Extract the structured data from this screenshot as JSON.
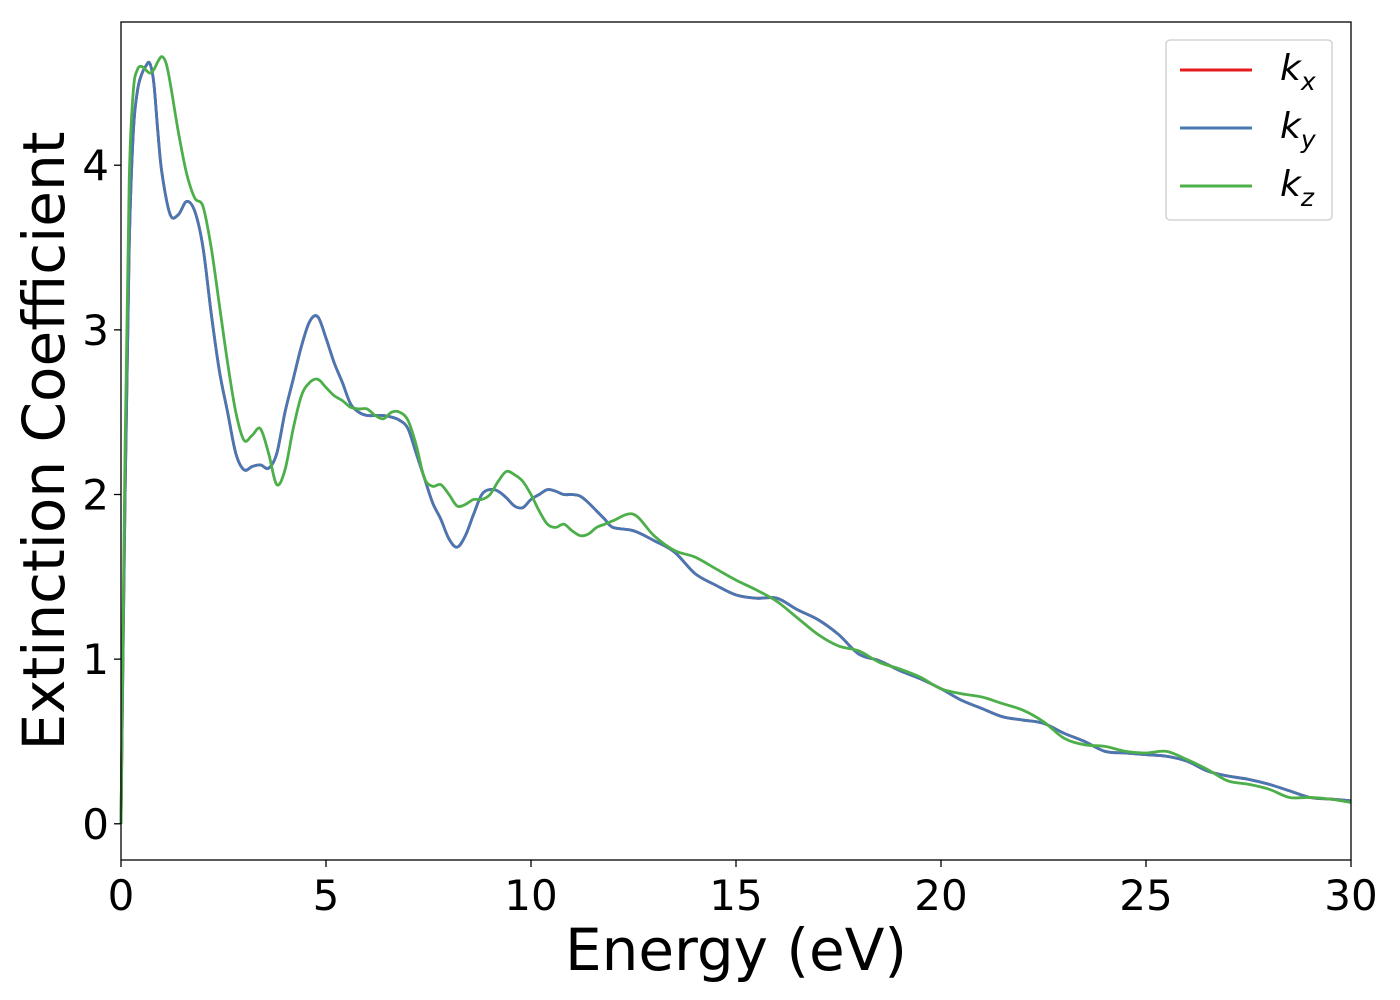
{
  "chart_data": {
    "type": "line",
    "title": "",
    "xlabel": "Energy (eV)",
    "ylabel": "Extinction Coefficient",
    "xlim": [
      0,
      30
    ],
    "ylim": [
      -0.22,
      4.87
    ],
    "xticks": [
      0,
      5,
      10,
      15,
      20,
      25,
      30
    ],
    "xtick_labels": [
      "0",
      "5",
      "10",
      "15",
      "20",
      "25",
      "30"
    ],
    "yticks": [
      0,
      1,
      2,
      3,
      4
    ],
    "ytick_labels": [
      "0",
      "1",
      "2",
      "3",
      "4"
    ],
    "grid": false,
    "legend_position": "top-right",
    "series": [
      {
        "name": "k",
        "subscript": "x",
        "color": "#e41a1c",
        "x": [
          0,
          0.1,
          0.2,
          0.3,
          0.4,
          0.5,
          0.6,
          0.7,
          0.8,
          0.9,
          1.0,
          1.2,
          1.4,
          1.6,
          1.8,
          2.0,
          2.2,
          2.4,
          2.6,
          2.8,
          3.0,
          3.2,
          3.4,
          3.6,
          3.8,
          4.0,
          4.2,
          4.4,
          4.6,
          4.8,
          5.0,
          5.2,
          5.4,
          5.6,
          5.8,
          6.0,
          6.2,
          6.4,
          6.6,
          6.8,
          7.0,
          7.2,
          7.4,
          7.6,
          7.8,
          8.0,
          8.2,
          8.4,
          8.6,
          8.8,
          9.0,
          9.2,
          9.4,
          9.6,
          9.8,
          10.0,
          10.2,
          10.4,
          10.6,
          10.8,
          11.0,
          11.2,
          11.4,
          11.6,
          11.8,
          12.0,
          12.5,
          13.0,
          13.5,
          14.0,
          14.5,
          15.0,
          15.5,
          16.0,
          16.5,
          17.0,
          17.5,
          18.0,
          18.5,
          19.0,
          19.5,
          20.0,
          20.5,
          21.0,
          21.5,
          22.0,
          22.5,
          23.0,
          23.5,
          24.0,
          24.5,
          25.0,
          25.5,
          26.0,
          26.5,
          27.0,
          27.5,
          28.0,
          28.5,
          29.0,
          29.5,
          30.0
        ],
        "y": [
          0.0,
          2.0,
          3.5,
          4.2,
          4.45,
          4.55,
          4.6,
          4.62,
          4.5,
          4.2,
          3.95,
          3.7,
          3.7,
          3.78,
          3.72,
          3.5,
          3.1,
          2.75,
          2.5,
          2.25,
          2.15,
          2.17,
          2.18,
          2.16,
          2.25,
          2.5,
          2.7,
          2.9,
          3.05,
          3.08,
          2.95,
          2.8,
          2.68,
          2.55,
          2.5,
          2.48,
          2.48,
          2.48,
          2.47,
          2.45,
          2.4,
          2.25,
          2.1,
          1.95,
          1.85,
          1.73,
          1.68,
          1.75,
          1.88,
          2.0,
          2.03,
          2.02,
          1.98,
          1.93,
          1.92,
          1.97,
          2.0,
          2.03,
          2.02,
          2.0,
          2.0,
          1.99,
          1.95,
          1.9,
          1.85,
          1.8,
          1.78,
          1.72,
          1.65,
          1.52,
          1.45,
          1.39,
          1.37,
          1.37,
          1.3,
          1.24,
          1.15,
          1.03,
          0.99,
          0.93,
          0.88,
          0.82,
          0.75,
          0.7,
          0.65,
          0.63,
          0.61,
          0.55,
          0.5,
          0.44,
          0.43,
          0.42,
          0.41,
          0.38,
          0.32,
          0.29,
          0.27,
          0.24,
          0.2,
          0.16,
          0.15,
          0.14
        ]
      },
      {
        "name": "k",
        "subscript": "y",
        "color": "#4878b4",
        "x": [
          0,
          0.1,
          0.2,
          0.3,
          0.4,
          0.5,
          0.6,
          0.7,
          0.8,
          0.9,
          1.0,
          1.2,
          1.4,
          1.6,
          1.8,
          2.0,
          2.2,
          2.4,
          2.6,
          2.8,
          3.0,
          3.2,
          3.4,
          3.6,
          3.8,
          4.0,
          4.2,
          4.4,
          4.6,
          4.8,
          5.0,
          5.2,
          5.4,
          5.6,
          5.8,
          6.0,
          6.2,
          6.4,
          6.6,
          6.8,
          7.0,
          7.2,
          7.4,
          7.6,
          7.8,
          8.0,
          8.2,
          8.4,
          8.6,
          8.8,
          9.0,
          9.2,
          9.4,
          9.6,
          9.8,
          10.0,
          10.2,
          10.4,
          10.6,
          10.8,
          11.0,
          11.2,
          11.4,
          11.6,
          11.8,
          12.0,
          12.5,
          13.0,
          13.5,
          14.0,
          14.5,
          15.0,
          15.5,
          16.0,
          16.5,
          17.0,
          17.5,
          18.0,
          18.5,
          19.0,
          19.5,
          20.0,
          20.5,
          21.0,
          21.5,
          22.0,
          22.5,
          23.0,
          23.5,
          24.0,
          24.5,
          25.0,
          25.5,
          26.0,
          26.5,
          27.0,
          27.5,
          28.0,
          28.5,
          29.0,
          29.5,
          30.0
        ],
        "y": [
          0.0,
          2.0,
          3.5,
          4.2,
          4.45,
          4.55,
          4.6,
          4.62,
          4.5,
          4.2,
          3.95,
          3.7,
          3.7,
          3.78,
          3.72,
          3.5,
          3.1,
          2.75,
          2.5,
          2.25,
          2.15,
          2.17,
          2.18,
          2.16,
          2.25,
          2.5,
          2.7,
          2.9,
          3.05,
          3.08,
          2.95,
          2.8,
          2.68,
          2.55,
          2.5,
          2.48,
          2.48,
          2.48,
          2.47,
          2.45,
          2.4,
          2.25,
          2.1,
          1.95,
          1.85,
          1.73,
          1.68,
          1.75,
          1.88,
          2.0,
          2.03,
          2.02,
          1.98,
          1.93,
          1.92,
          1.97,
          2.0,
          2.03,
          2.02,
          2.0,
          2.0,
          1.99,
          1.95,
          1.9,
          1.85,
          1.8,
          1.78,
          1.72,
          1.65,
          1.52,
          1.45,
          1.39,
          1.37,
          1.37,
          1.3,
          1.24,
          1.15,
          1.03,
          0.99,
          0.93,
          0.88,
          0.82,
          0.75,
          0.7,
          0.65,
          0.63,
          0.61,
          0.55,
          0.5,
          0.44,
          0.43,
          0.42,
          0.41,
          0.38,
          0.32,
          0.29,
          0.27,
          0.24,
          0.2,
          0.16,
          0.15,
          0.14
        ]
      },
      {
        "name": "k",
        "subscript": "z",
        "color": "#4daf4a",
        "x": [
          0,
          0.1,
          0.2,
          0.3,
          0.4,
          0.5,
          0.6,
          0.7,
          0.8,
          0.9,
          1.0,
          1.1,
          1.2,
          1.4,
          1.6,
          1.8,
          2.0,
          2.2,
          2.4,
          2.6,
          2.8,
          3.0,
          3.2,
          3.4,
          3.6,
          3.8,
          4.0,
          4.2,
          4.4,
          4.6,
          4.8,
          5.0,
          5.2,
          5.4,
          5.6,
          5.8,
          6.0,
          6.2,
          6.4,
          6.6,
          6.8,
          7.0,
          7.2,
          7.4,
          7.6,
          7.8,
          8.0,
          8.2,
          8.4,
          8.6,
          8.8,
          9.0,
          9.2,
          9.4,
          9.6,
          9.8,
          10.0,
          10.2,
          10.4,
          10.6,
          10.8,
          11.0,
          11.2,
          11.4,
          11.6,
          11.8,
          12.0,
          12.5,
          13.0,
          13.5,
          14.0,
          14.5,
          15.0,
          15.5,
          16.0,
          16.5,
          17.0,
          17.5,
          18.0,
          18.5,
          19.0,
          19.5,
          20.0,
          20.5,
          21.0,
          21.5,
          22.0,
          22.5,
          23.0,
          23.5,
          24.0,
          24.5,
          25.0,
          25.5,
          26.0,
          26.5,
          27.0,
          27.5,
          28.0,
          28.5,
          29.0,
          29.5,
          30.0
        ],
        "y": [
          0.0,
          2.3,
          3.9,
          4.45,
          4.58,
          4.6,
          4.58,
          4.56,
          4.58,
          4.63,
          4.66,
          4.62,
          4.5,
          4.2,
          3.95,
          3.8,
          3.75,
          3.5,
          3.15,
          2.8,
          2.5,
          2.33,
          2.36,
          2.4,
          2.25,
          2.06,
          2.15,
          2.4,
          2.6,
          2.68,
          2.7,
          2.65,
          2.6,
          2.57,
          2.53,
          2.52,
          2.52,
          2.48,
          2.46,
          2.5,
          2.5,
          2.45,
          2.3,
          2.1,
          2.05,
          2.06,
          2.0,
          1.93,
          1.94,
          1.97,
          1.97,
          2.0,
          2.08,
          2.14,
          2.12,
          2.08,
          2.0,
          1.9,
          1.82,
          1.8,
          1.82,
          1.78,
          1.75,
          1.76,
          1.8,
          1.82,
          1.84,
          1.88,
          1.75,
          1.66,
          1.62,
          1.55,
          1.48,
          1.42,
          1.35,
          1.25,
          1.15,
          1.08,
          1.05,
          0.98,
          0.94,
          0.89,
          0.82,
          0.79,
          0.77,
          0.73,
          0.69,
          0.62,
          0.52,
          0.48,
          0.47,
          0.44,
          0.43,
          0.44,
          0.39,
          0.33,
          0.26,
          0.24,
          0.21,
          0.16,
          0.16,
          0.15,
          0.13
        ]
      }
    ]
  }
}
